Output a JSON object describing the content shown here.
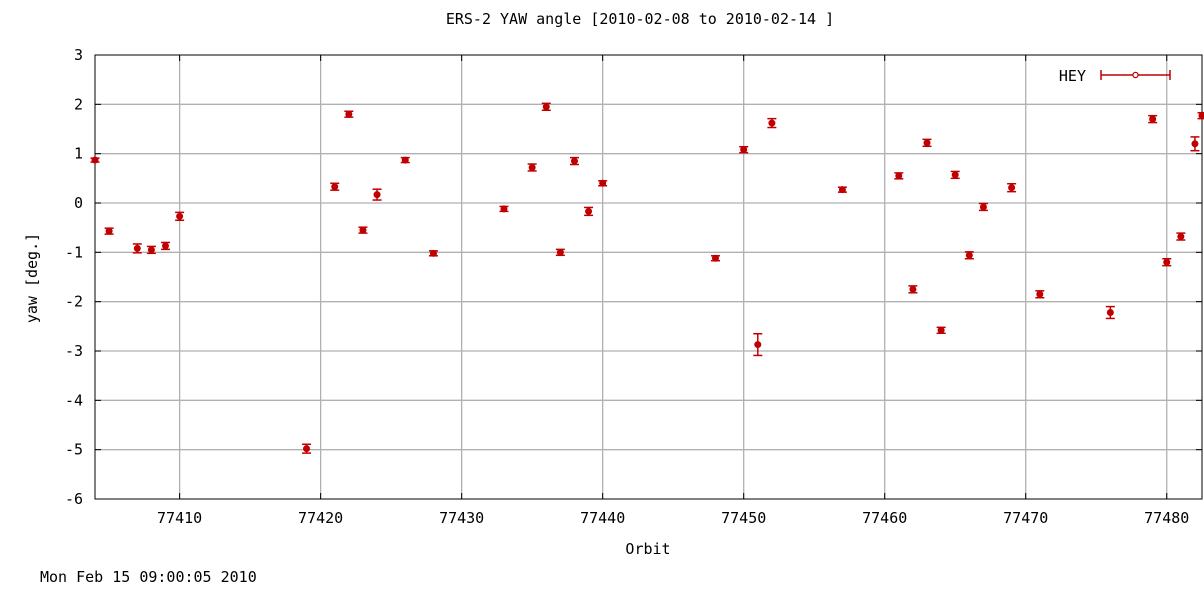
{
  "footer": {
    "timestamp": "Mon Feb 15 09:00:05 2010"
  },
  "chart_data": {
    "type": "scatter",
    "title": "ERS-2 YAW angle [2010-02-08 to 2010-02-14 ]",
    "xlabel": "Orbit",
    "ylabel": "yaw [deg.]",
    "xlim": [
      77404,
      77482.5
    ],
    "ylim": [
      -6,
      3
    ],
    "xticks": [
      77410,
      77420,
      77430,
      77440,
      77450,
      77460,
      77470,
      77480
    ],
    "yticks": [
      -6,
      -5,
      -4,
      -3,
      -2,
      -1,
      0,
      1,
      2,
      3
    ],
    "grid": true,
    "legend": {
      "position": "top-right",
      "style": "errorbar"
    },
    "colors": {
      "series": "#c00000",
      "grid": "#b0b0b0",
      "axis": "#000000"
    },
    "series": [
      {
        "name": "HEY",
        "points": [
          {
            "x": 77404,
            "y": 0.87,
            "err": 0.04
          },
          {
            "x": 77405,
            "y": -0.57,
            "err": 0.06
          },
          {
            "x": 77407,
            "y": -0.92,
            "err": 0.09
          },
          {
            "x": 77408,
            "y": -0.95,
            "err": 0.07
          },
          {
            "x": 77409,
            "y": -0.87,
            "err": 0.07
          },
          {
            "x": 77410,
            "y": -0.27,
            "err": 0.08
          },
          {
            "x": 77419,
            "y": -4.98,
            "err": 0.09
          },
          {
            "x": 77421,
            "y": 0.33,
            "err": 0.07
          },
          {
            "x": 77422,
            "y": 1.8,
            "err": 0.06
          },
          {
            "x": 77423,
            "y": -0.55,
            "err": 0.06
          },
          {
            "x": 77424,
            "y": 0.17,
            "err": 0.11
          },
          {
            "x": 77426,
            "y": 0.87,
            "err": 0.05
          },
          {
            "x": 77428,
            "y": -1.02,
            "err": 0.05
          },
          {
            "x": 77433,
            "y": -0.12,
            "err": 0.05
          },
          {
            "x": 77435,
            "y": 0.72,
            "err": 0.07
          },
          {
            "x": 77436,
            "y": 1.95,
            "err": 0.07
          },
          {
            "x": 77437,
            "y": -1.0,
            "err": 0.06
          },
          {
            "x": 77438,
            "y": 0.85,
            "err": 0.07
          },
          {
            "x": 77439,
            "y": -0.17,
            "err": 0.08
          },
          {
            "x": 77440,
            "y": 0.4,
            "err": 0.05
          },
          {
            "x": 77448,
            "y": -1.12,
            "err": 0.05
          },
          {
            "x": 77450,
            "y": 1.08,
            "err": 0.06
          },
          {
            "x": 77451,
            "y": -2.87,
            "err": 0.22
          },
          {
            "x": 77452,
            "y": 1.62,
            "err": 0.09
          },
          {
            "x": 77457,
            "y": 0.27,
            "err": 0.05
          },
          {
            "x": 77461,
            "y": 0.55,
            "err": 0.06
          },
          {
            "x": 77462,
            "y": -1.75,
            "err": 0.07
          },
          {
            "x": 77463,
            "y": 1.22,
            "err": 0.07
          },
          {
            "x": 77464,
            "y": -2.58,
            "err": 0.06
          },
          {
            "x": 77465,
            "y": 0.57,
            "err": 0.07
          },
          {
            "x": 77466,
            "y": -1.06,
            "err": 0.07
          },
          {
            "x": 77467,
            "y": -0.08,
            "err": 0.07
          },
          {
            "x": 77469,
            "y": 0.31,
            "err": 0.08
          },
          {
            "x": 77471,
            "y": -1.85,
            "err": 0.07
          },
          {
            "x": 77476,
            "y": -2.22,
            "err": 0.12
          },
          {
            "x": 77479,
            "y": 1.7,
            "err": 0.07
          },
          {
            "x": 77480,
            "y": -1.2,
            "err": 0.07
          },
          {
            "x": 77481,
            "y": -0.68,
            "err": 0.07
          },
          {
            "x": 77482,
            "y": 1.2,
            "err": 0.14
          },
          {
            "x": 77482.5,
            "y": 1.77,
            "err": 0.06
          }
        ]
      }
    ]
  }
}
